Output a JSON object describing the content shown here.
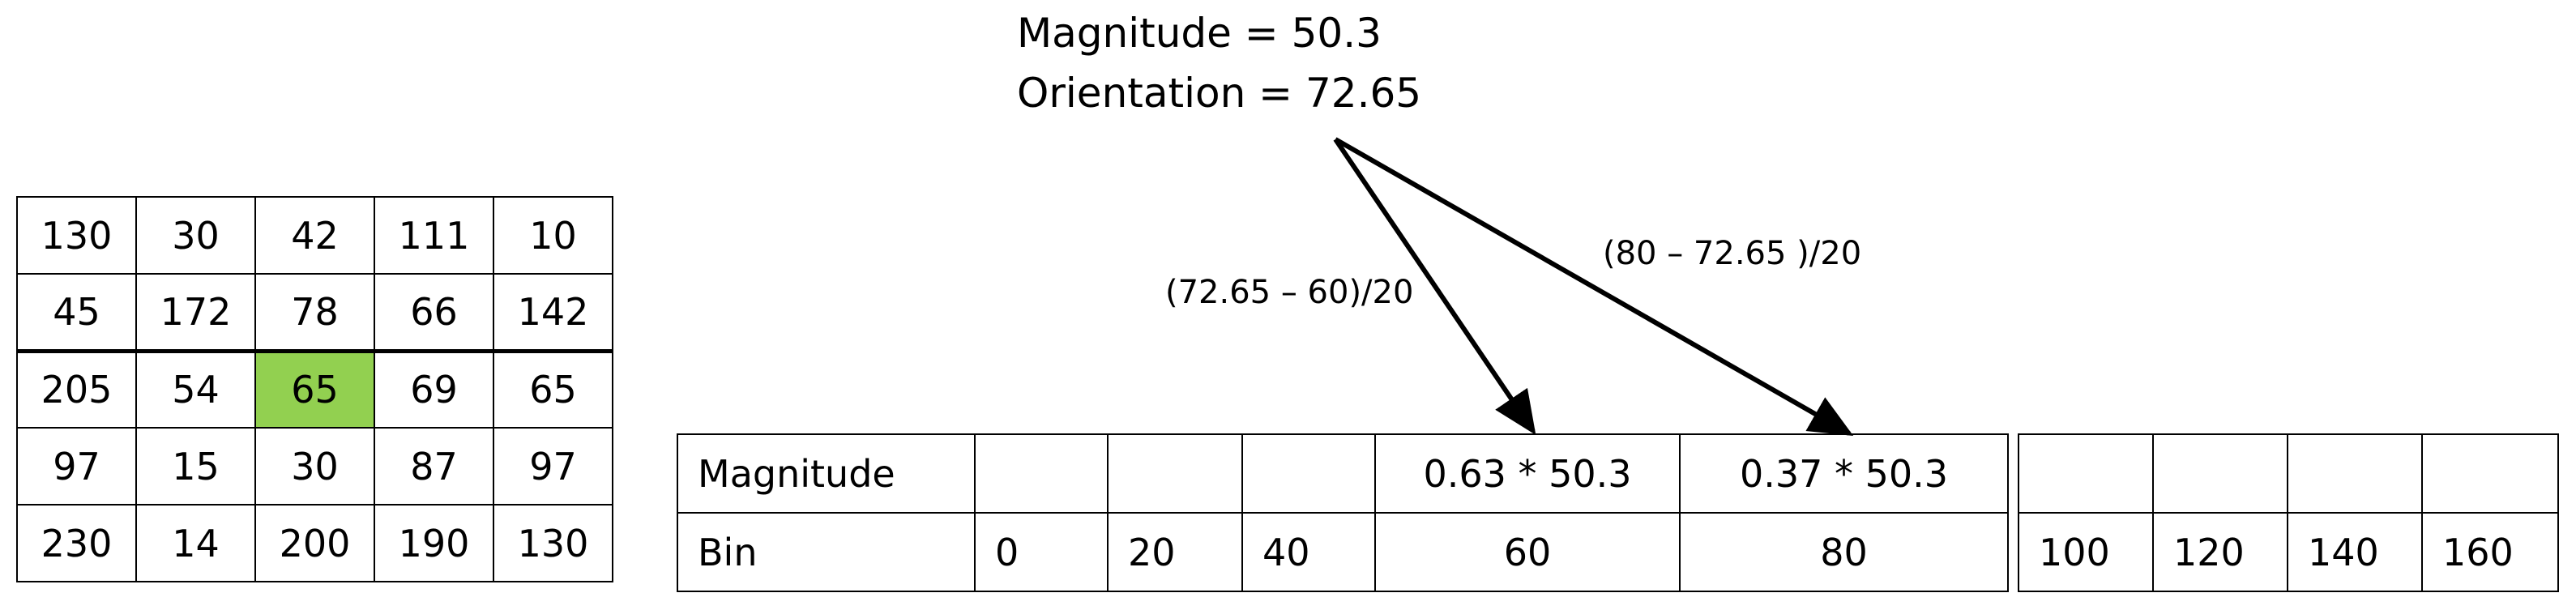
{
  "info": {
    "magnitude_line": "Magnitude = 50.3",
    "orientation_line": "Orientation = 72.65"
  },
  "grid": [
    [
      "130",
      "30",
      "42",
      "111",
      "10"
    ],
    [
      "45",
      "172",
      "78",
      "66",
      "142"
    ],
    [
      "205",
      "54",
      "65",
      "69",
      "65"
    ],
    [
      "97",
      "15",
      "30",
      "87",
      "97"
    ],
    [
      "230",
      "14",
      "200",
      "190",
      "130"
    ]
  ],
  "grid_highlight": {
    "row": 2,
    "col": 2,
    "color": "#92d050"
  },
  "histogram": {
    "magnitude_label": "Magnitude",
    "bin_label": "Bin",
    "left_bins": [
      "0",
      "20",
      "40",
      "60",
      "80"
    ],
    "left_magnitudes": [
      "",
      "",
      "",
      "0.63 * 50.3",
      "0.37 * 50.3"
    ],
    "right_bins": [
      "100",
      "120",
      "140",
      "160"
    ],
    "right_magnitudes": [
      "",
      "",
      "",
      ""
    ]
  },
  "arrows": {
    "left_formula": "(72.65 – 60)/20",
    "right_formula": "(80  – 72.65 )/20"
  }
}
